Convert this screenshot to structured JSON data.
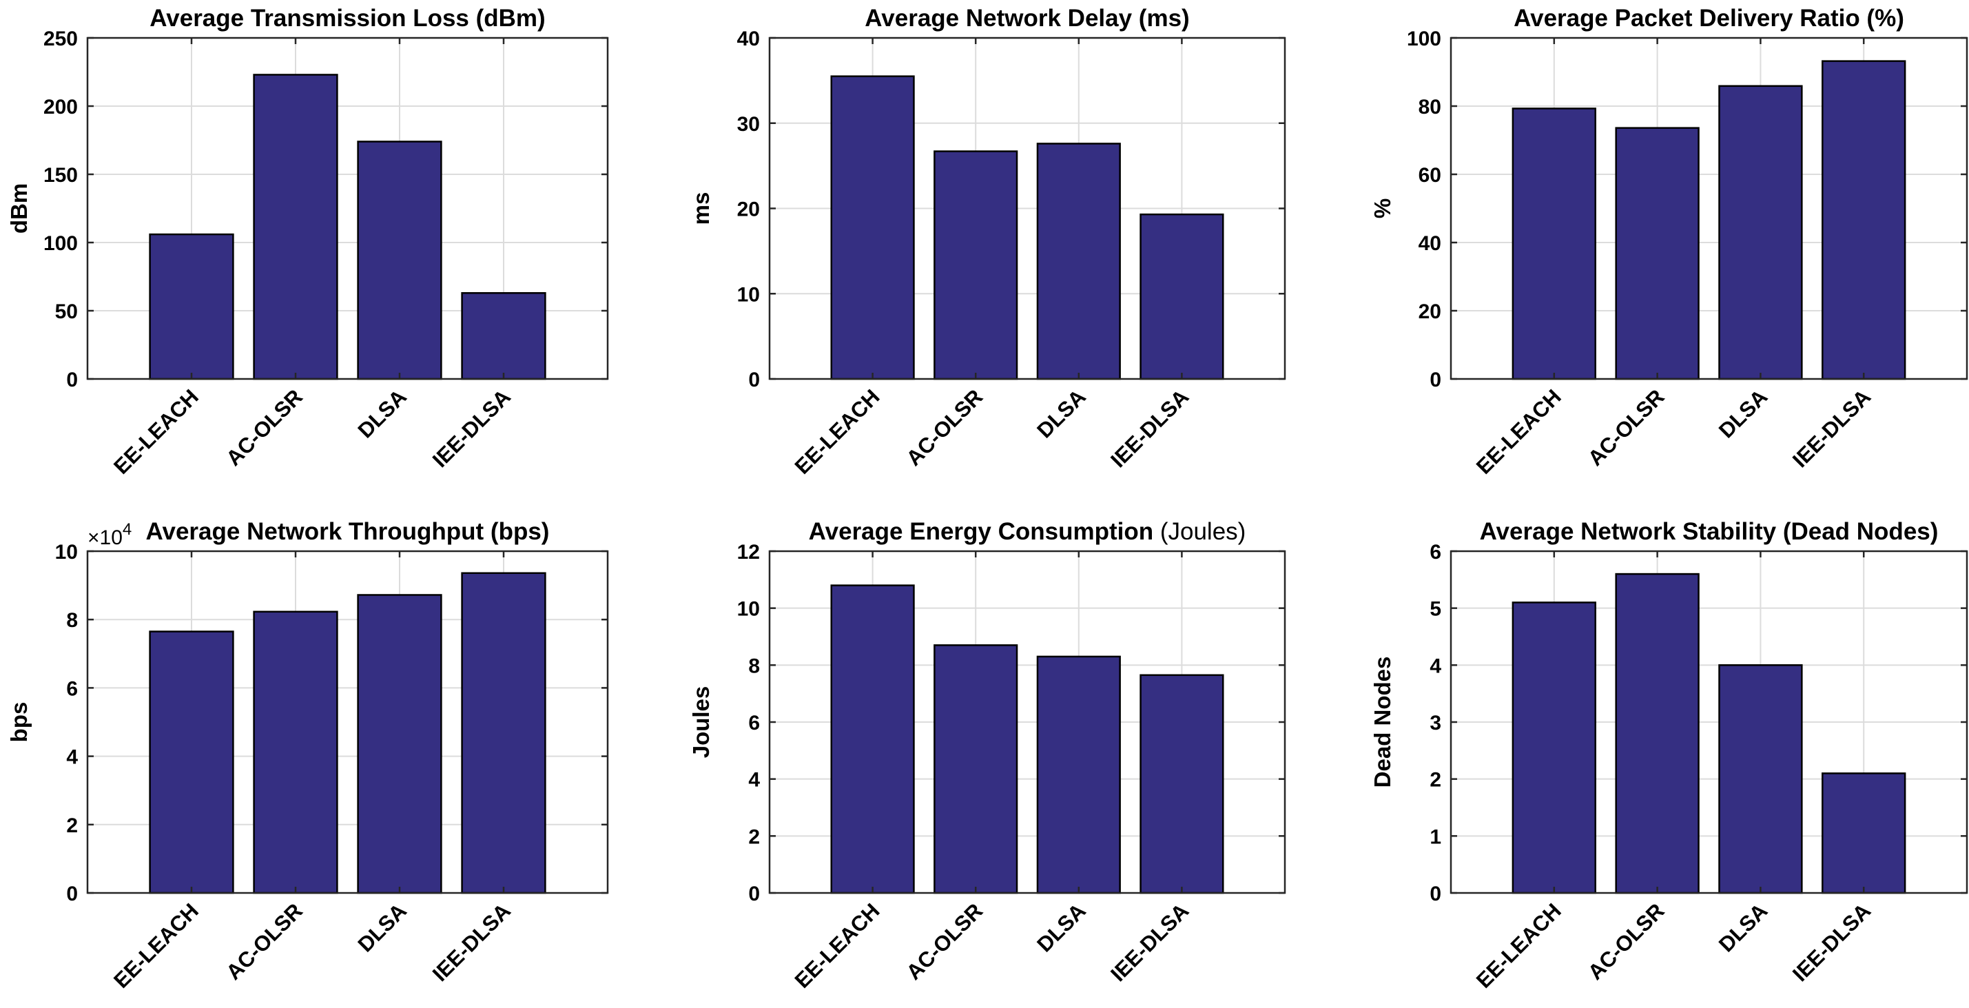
{
  "colors": {
    "bar": "#352F82",
    "bar_edge": "#000000",
    "grid": "#DCDCDC",
    "axis": "#262626",
    "background": "#FFFFFF"
  },
  "chart_data": [
    {
      "type": "bar",
      "title": "Average Transmission Loss (dBm)",
      "xlabel": "",
      "ylabel": "dBm",
      "categories": [
        "EE-LEACH",
        "AC-OLSR",
        "DLSA",
        "IEE-DLSA"
      ],
      "values": [
        106,
        223,
        174,
        63
      ],
      "ylim": [
        0,
        250
      ],
      "yticks": [
        0,
        50,
        100,
        150,
        200,
        250
      ],
      "ytick_labels": [
        "0",
        "50",
        "100",
        "150",
        "200",
        "250"
      ],
      "grid": true
    },
    {
      "type": "bar",
      "title": "Average Network Delay (ms)",
      "xlabel": "",
      "ylabel": "ms",
      "categories": [
        "EE-LEACH",
        "AC-OLSR",
        "DLSA",
        "IEE-DLSA"
      ],
      "values": [
        35.5,
        26.7,
        27.6,
        19.3
      ],
      "ylim": [
        0,
        40
      ],
      "yticks": [
        0,
        10,
        20,
        30,
        40
      ],
      "ytick_labels": [
        "0",
        "10",
        "20",
        "30",
        "40"
      ],
      "grid": true
    },
    {
      "type": "bar",
      "title": "Average Packet Delivery Ratio (%)",
      "xlabel": "",
      "ylabel": "%",
      "categories": [
        "EE-LEACH",
        "AC-OLSR",
        "DLSA",
        "IEE-DLSA"
      ],
      "values": [
        79.3,
        73.6,
        85.9,
        93.2
      ],
      "ylim": [
        0,
        100
      ],
      "yticks": [
        0,
        20,
        40,
        60,
        80,
        100
      ],
      "ytick_labels": [
        "0",
        "20",
        "40",
        "60",
        "80",
        "100"
      ],
      "grid": true
    },
    {
      "type": "bar",
      "title": "Average Network Throughput (bps)",
      "xlabel": "",
      "ylabel": "bps",
      "categories": [
        "EE-LEACH",
        "AC-OLSR",
        "DLSA",
        "IEE-DLSA"
      ],
      "values": [
        76500,
        82300,
        87200,
        93600
      ],
      "ylim": [
        0,
        100000
      ],
      "yticks": [
        0,
        20000,
        40000,
        60000,
        80000,
        100000
      ],
      "ytick_labels": [
        "0",
        "2",
        "4",
        "6",
        "8",
        "10"
      ],
      "exponent_base": "×10",
      "exponent_power": "4",
      "grid": true
    },
    {
      "type": "bar",
      "title": "Average Energy Consumption ",
      "title_unit": "(Joules)",
      "xlabel": "",
      "ylabel": "Joules",
      "categories": [
        "EE-LEACH",
        "AC-OLSR",
        "DLSA",
        "IEE-DLSA"
      ],
      "values": [
        10.8,
        8.7,
        8.3,
        7.65
      ],
      "ylim": [
        0,
        12
      ],
      "yticks": [
        0,
        2,
        4,
        6,
        8,
        10,
        12
      ],
      "ytick_labels": [
        "0",
        "2",
        "4",
        "6",
        "8",
        "10",
        "12"
      ],
      "grid": true
    },
    {
      "type": "bar",
      "title": "Average Network Stability (Dead Nodes)",
      "xlabel": "",
      "ylabel": "Dead Nodes",
      "categories": [
        "EE-LEACH",
        "AC-OLSR",
        "DLSA",
        "IEE-DLSA"
      ],
      "values": [
        5.1,
        5.6,
        4.0,
        2.1
      ],
      "ylim": [
        0,
        6
      ],
      "yticks": [
        0,
        1,
        2,
        3,
        4,
        5,
        6
      ],
      "ytick_labels": [
        "0",
        "1",
        "2",
        "3",
        "4",
        "5",
        "6"
      ],
      "grid": true
    }
  ]
}
